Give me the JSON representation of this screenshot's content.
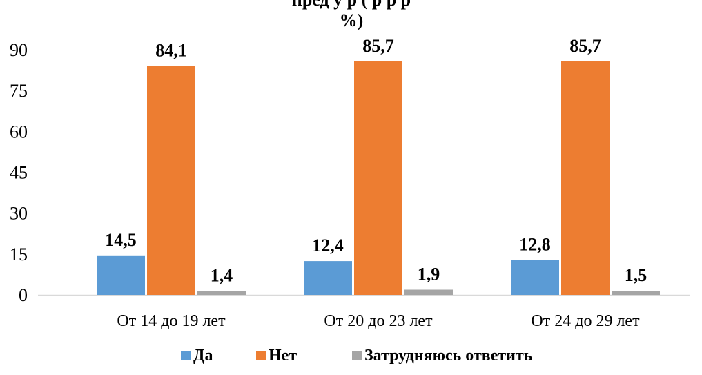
{
  "chart_data": {
    "type": "bar",
    "title_lines": [
      "пред  у       р       (   р    р     р",
      "%)"
    ],
    "categories": [
      "От 14 до 19 лет",
      "От 20 до 23 лет",
      "От 24 до 29 лет"
    ],
    "series": [
      {
        "name": "Да",
        "values": [
          14.5,
          12.4,
          12.8
        ],
        "labels": [
          "14,5",
          "12,4",
          "12,8"
        ],
        "color": "#5b9bd5"
      },
      {
        "name": "Нет",
        "values": [
          84.1,
          85.7,
          85.7
        ],
        "labels": [
          "84,1",
          "85,7",
          "85,7"
        ],
        "color": "#ed7d31"
      },
      {
        "name": "Затрудняюсь ответить",
        "values": [
          1.4,
          1.9,
          1.5
        ],
        "labels": [
          "1,4",
          "1,9",
          "1,5"
        ],
        "color": "#a5a5a5"
      }
    ],
    "yticks": [
      "0",
      "15",
      "30",
      "45",
      "60",
      "75",
      "90"
    ],
    "ylim": [
      0,
      90
    ],
    "legend_position": "bottom",
    "grid": false
  }
}
